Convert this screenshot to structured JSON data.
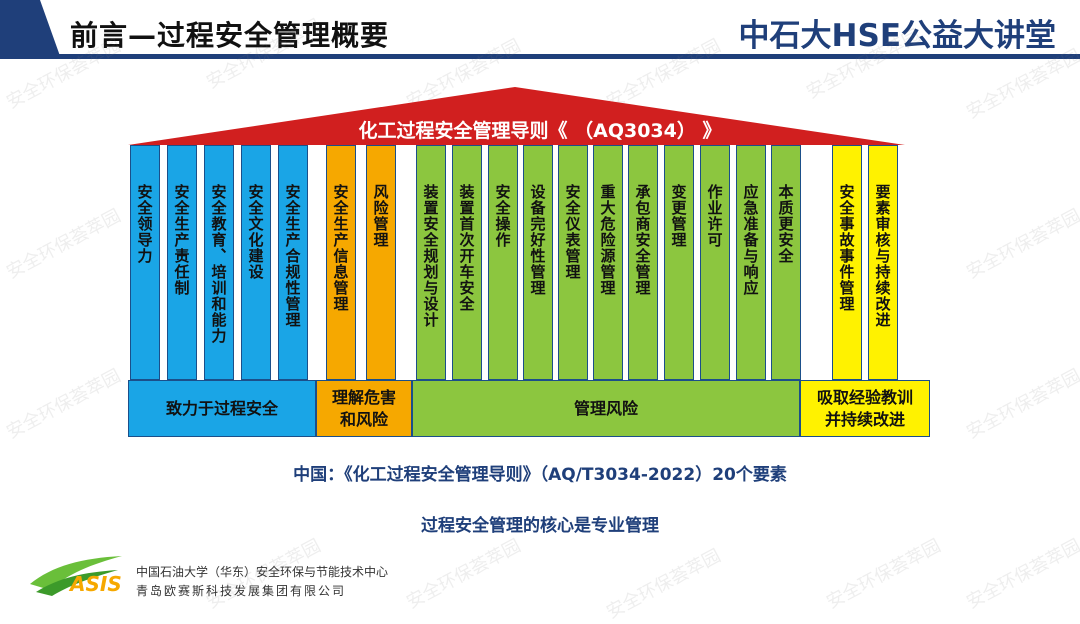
{
  "header": {
    "title": "前言—过程安全管理概要",
    "brand": "中石大HSE公益大讲堂"
  },
  "roof": {
    "title": "化工过程安全管理导则《 （AQ3034） 》"
  },
  "pillars": [
    {
      "label": "安全领导力",
      "group": "blue"
    },
    {
      "label": "安全生产责任制",
      "group": "blue"
    },
    {
      "label": "安全教育、培训和能力",
      "group": "blue"
    },
    {
      "label": "安全文化建设",
      "group": "blue"
    },
    {
      "label": "安全生产合规性管理",
      "group": "blue"
    },
    {
      "label": "安全生产信息管理",
      "group": "orange"
    },
    {
      "label": "风险管理",
      "group": "orange"
    },
    {
      "label": "装置安全规划与设计",
      "group": "green"
    },
    {
      "label": "装置首次开车安全",
      "group": "green"
    },
    {
      "label": "安全操作",
      "group": "green"
    },
    {
      "label": "设备完好性管理",
      "group": "green"
    },
    {
      "label": "安全仪表管理",
      "group": "green"
    },
    {
      "label": "重大危险源管理",
      "group": "green"
    },
    {
      "label": "承包商安全管理",
      "group": "green"
    },
    {
      "label": "变更管理",
      "group": "green"
    },
    {
      "label": "作业许可",
      "group": "green"
    },
    {
      "label": "应急准备与响应",
      "group": "green"
    },
    {
      "label": "本质更安全",
      "group": "green"
    },
    {
      "label": "安全事故事件管理",
      "group": "yellow"
    },
    {
      "label": "要素审核与持续改进",
      "group": "yellow"
    }
  ],
  "bases": [
    {
      "label": "致力于过程安全",
      "group": "blue"
    },
    {
      "label": "理解危害和风险",
      "group": "orange"
    },
    {
      "label": "管理风险",
      "group": "green"
    },
    {
      "label": "吸取经验教训并持续改进",
      "group": "yellow"
    }
  ],
  "captions": {
    "line1": "中国：《化工过程安全管理导则》（AQ/T3034-2022）20个要素",
    "line2": "过程安全管理的核心是专业管理"
  },
  "footer": {
    "logo_text": "ASIS",
    "line1": "中国石油大学（华东）安全环保与节能技术中心",
    "line2": "青岛欧赛斯科技发展集团有限公司"
  },
  "watermark": "安全环保荟萃园",
  "colors": {
    "navy": "#1f3f7a",
    "roof": "#d11f1f",
    "blue": "#1aa5e6",
    "orange": "#f6a800",
    "green": "#8cc63f",
    "yellow": "#fff200"
  }
}
